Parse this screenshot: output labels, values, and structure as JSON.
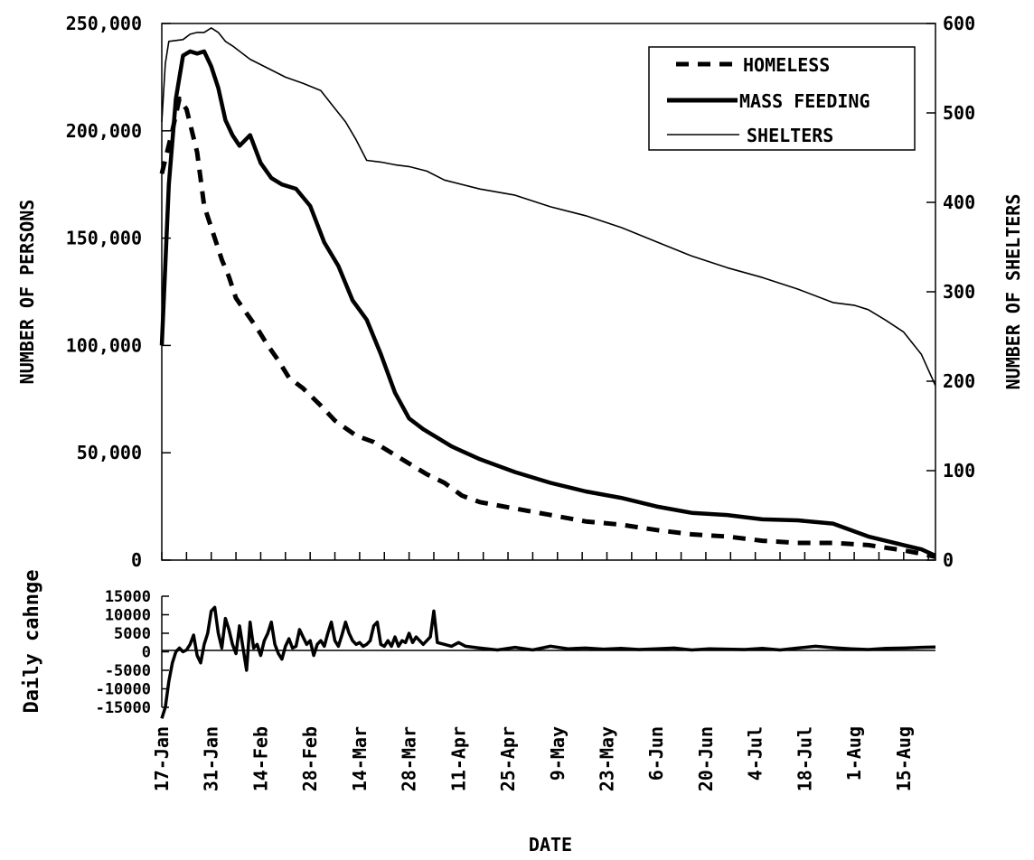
{
  "chart_data": [
    {
      "type": "line",
      "xlabel": "DATE",
      "ylabel": "NUMBER OF PERSONS",
      "ylabel_right": "NUMBER OF SHELTERS",
      "ylim": [
        0,
        250000
      ],
      "ylim_right": [
        0,
        600
      ],
      "yticks": [
        "0",
        "50,000",
        "100,000",
        "150,000",
        "200,000",
        "250,000"
      ],
      "yticks_right": [
        "0",
        "100",
        "200",
        "300",
        "400",
        "500",
        "600"
      ],
      "x_range_days": [
        0,
        219
      ],
      "legend_position": "top-right",
      "grid": false,
      "series": [
        {
          "name": "HOMELESS",
          "axis": "left",
          "style": "dashed-thick",
          "x": [
            0,
            3,
            5,
            7,
            10,
            12,
            14,
            17,
            19,
            21,
            24,
            27,
            30,
            33,
            36,
            40,
            45,
            49,
            55,
            60,
            65,
            70,
            75,
            80,
            85,
            90,
            100,
            110,
            120,
            130,
            140,
            150,
            160,
            170,
            180,
            190,
            200,
            210,
            215,
            219
          ],
          "values": [
            180000,
            200000,
            215000,
            210000,
            190000,
            165000,
            155000,
            140000,
            132000,
            122000,
            115000,
            108000,
            100000,
            93000,
            85000,
            80000,
            72000,
            65000,
            58000,
            55000,
            50000,
            45000,
            40000,
            36000,
            30000,
            27000,
            24000,
            21000,
            18000,
            16500,
            14000,
            12000,
            11000,
            9000,
            8000,
            8000,
            7000,
            4500,
            3000,
            1500
          ]
        },
        {
          "name": "MASS FEEDING",
          "axis": "left",
          "style": "solid-thick",
          "x": [
            0,
            2,
            4,
            6,
            8,
            10,
            12,
            14,
            16,
            18,
            20,
            22,
            25,
            28,
            31,
            34,
            38,
            42,
            46,
            50,
            54,
            58,
            62,
            66,
            70,
            74,
            78,
            82,
            86,
            90,
            100,
            110,
            120,
            130,
            140,
            150,
            160,
            170,
            180,
            190,
            200,
            210,
            215,
            219
          ],
          "values": [
            100000,
            175000,
            215000,
            235000,
            237000,
            236000,
            237000,
            230000,
            220000,
            205000,
            198000,
            193000,
            198000,
            185000,
            178000,
            175000,
            173000,
            165000,
            148000,
            137000,
            121000,
            112000,
            96000,
            78000,
            66000,
            61000,
            57000,
            53000,
            50000,
            47000,
            41000,
            36000,
            32000,
            29000,
            25000,
            22000,
            21000,
            19000,
            18500,
            17000,
            11000,
            7000,
            5000,
            2000
          ]
        },
        {
          "name": "SHELTERS",
          "axis": "right",
          "style": "solid-thin",
          "x": [
            0,
            1,
            2,
            4,
            6,
            8,
            10,
            12,
            14,
            16,
            18,
            20,
            25,
            30,
            35,
            40,
            45,
            48,
            52,
            55,
            58,
            62,
            66,
            70,
            75,
            80,
            90,
            100,
            110,
            120,
            130,
            140,
            150,
            160,
            170,
            180,
            190,
            196,
            200,
            205,
            210,
            215,
            219
          ],
          "values": [
            490,
            555,
            580,
            581,
            582,
            588,
            590,
            590,
            595,
            590,
            580,
            575,
            560,
            550,
            540,
            533,
            525,
            510,
            490,
            470,
            447,
            445,
            442,
            440,
            435,
            425,
            415,
            408,
            395,
            385,
            372,
            356,
            340,
            327,
            316,
            303,
            288,
            285,
            280,
            268,
            255,
            230,
            195
          ]
        }
      ],
      "x_tick_labels": [
        "17-Jan",
        "31-Jan",
        "14-Feb",
        "28-Feb",
        "14-Mar",
        "28-Mar",
        "11-Apr",
        "25-Apr",
        "9-May",
        "23-May",
        "6-Jun",
        "20-Jun",
        "4-Jul",
        "18-Jul",
        "1-Aug",
        "15-Aug"
      ],
      "x_tick_days": [
        0,
        14,
        28,
        42,
        56,
        70,
        84,
        98,
        112,
        126,
        140,
        154,
        168,
        182,
        196,
        210
      ]
    },
    {
      "type": "line",
      "ylabel": "Daily cahnge",
      "ylim": [
        -15000,
        15000
      ],
      "yticks": [
        "15000",
        "10000",
        "5000",
        "0",
        "-5000",
        "-10000",
        "-15000"
      ],
      "series": [
        {
          "name": "",
          "x": [
            0,
            1,
            2,
            3,
            4,
            5,
            6,
            7,
            8,
            9,
            10,
            11,
            12,
            13,
            14,
            15,
            16,
            17,
            18,
            19,
            20,
            21,
            22,
            23,
            24,
            25,
            26,
            27,
            28,
            29,
            30,
            31,
            32,
            33,
            34,
            35,
            36,
            37,
            38,
            39,
            40,
            41,
            42,
            43,
            44,
            45,
            46,
            47,
            48,
            49,
            50,
            51,
            52,
            53,
            54,
            55,
            56,
            57,
            58,
            59,
            60,
            61,
            62,
            63,
            64,
            65,
            66,
            67,
            68,
            69,
            70,
            71,
            72,
            73,
            74,
            75,
            76,
            77,
            78,
            80,
            82,
            84,
            86,
            90,
            95,
            100,
            105,
            110,
            115,
            120,
            125,
            130,
            135,
            140,
            145,
            150,
            155,
            160,
            165,
            170,
            175,
            180,
            185,
            190,
            195,
            200,
            205,
            210,
            215,
            219
          ],
          "values": [
            -18000,
            -15000,
            -8000,
            -3000,
            0,
            1000,
            0,
            500,
            2000,
            4500,
            -1000,
            -3000,
            2000,
            5000,
            11000,
            12000,
            5000,
            1000,
            9000,
            6000,
            2000,
            -500,
            7000,
            1000,
            -5000,
            8000,
            1000,
            2000,
            -1000,
            3000,
            5000,
            8000,
            2000,
            -500,
            -2000,
            1500,
            3500,
            1000,
            1500,
            6000,
            4000,
            2000,
            3000,
            -1000,
            2000,
            3000,
            1500,
            5000,
            8000,
            3000,
            1500,
            4500,
            8000,
            5000,
            3000,
            2000,
            2500,
            1500,
            2000,
            3000,
            7000,
            8000,
            2000,
            1500,
            3000,
            1500,
            4000,
            1500,
            3000,
            2500,
            5000,
            2500,
            4000,
            3000,
            2000,
            3000,
            4000,
            11000,
            2500,
            2000,
            1500,
            2500,
            1500,
            1000,
            500,
            1200,
            500,
            1500,
            800,
            1000,
            700,
            900,
            600,
            800,
            1000,
            500,
            800,
            700,
            600,
            900,
            500,
            1000,
            1500,
            1100,
            800,
            600,
            900,
            1000,
            1200,
            1300
          ]
        }
      ]
    }
  ]
}
